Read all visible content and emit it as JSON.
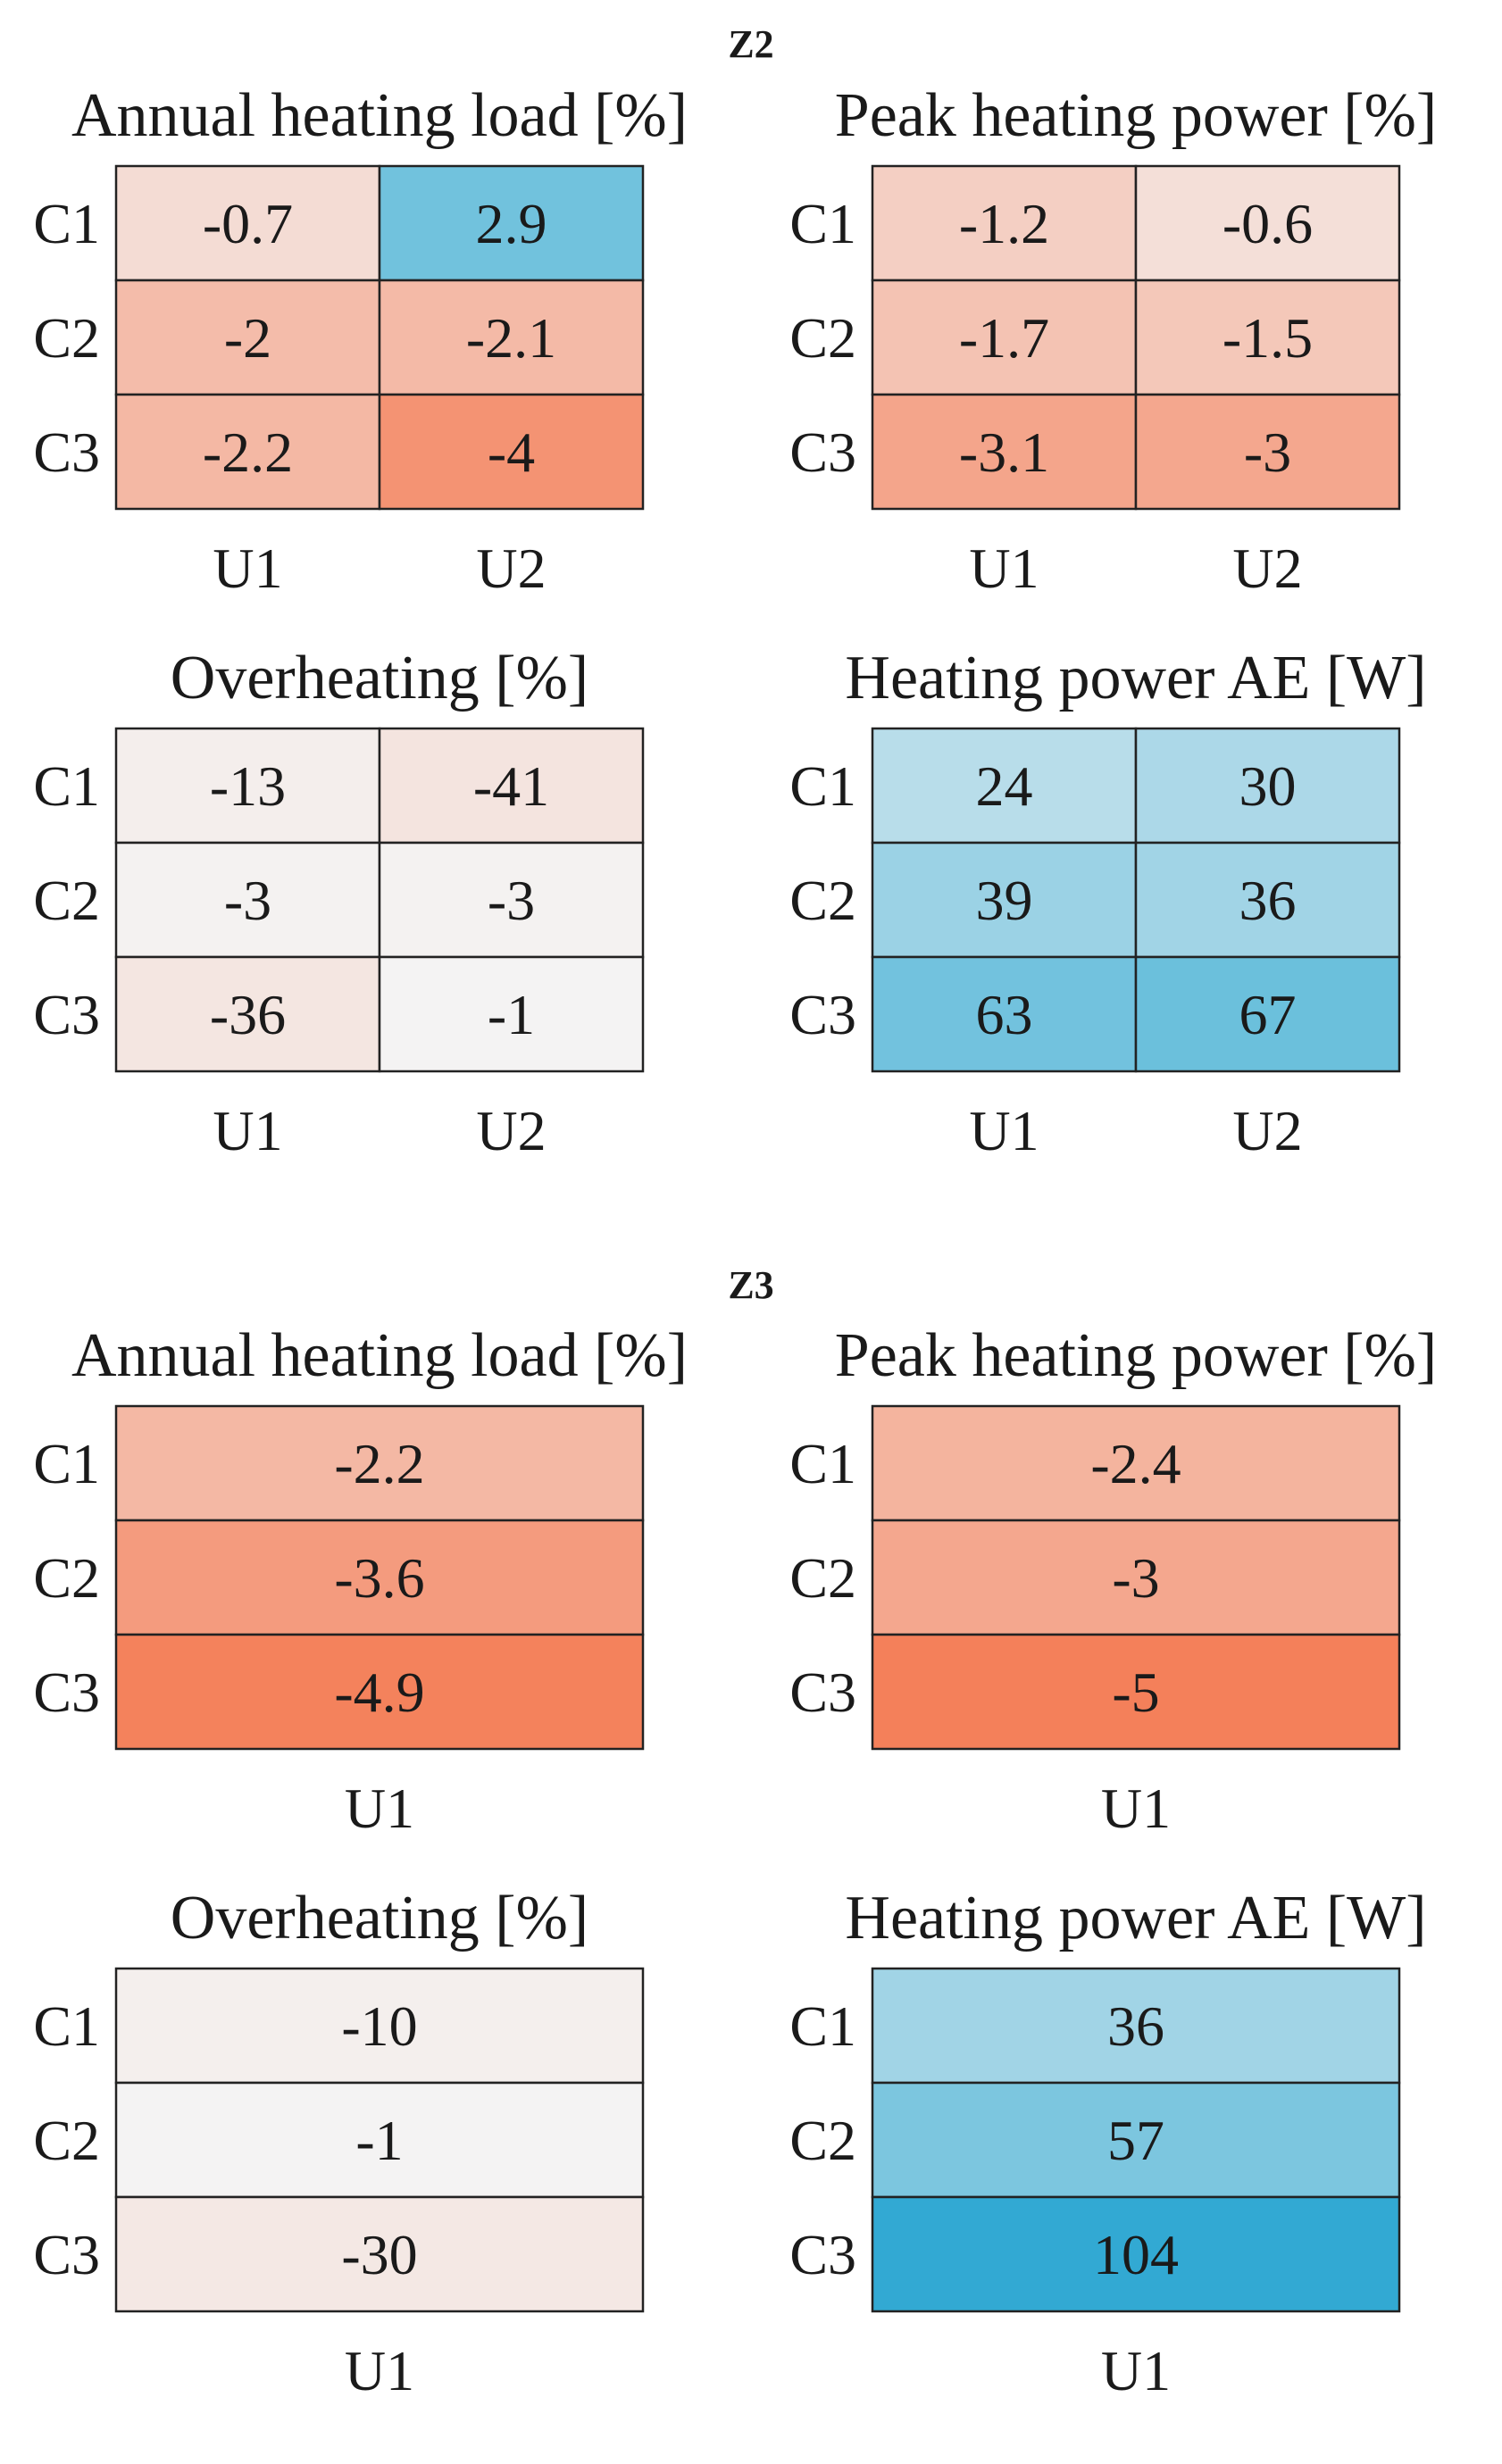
{
  "colors": {
    "negative_strong": "#f4805a",
    "positive_strong": "#29a6d1",
    "neutral": "#f4f4f4",
    "grid_stroke": "#222222"
  },
  "chart_data": [
    {
      "type": "heatmap",
      "section": "Z2",
      "title": "Annual heating load [%]",
      "rows": [
        "C1",
        "C2",
        "C3"
      ],
      "columns": [
        "U1",
        "U2"
      ],
      "values": [
        [
          -0.7,
          2.9
        ],
        [
          -2,
          -2.1
        ],
        [
          -2.2,
          -4
        ]
      ],
      "labels": [
        [
          "-0.7",
          "2.9"
        ],
        [
          "-2",
          "-2.1"
        ],
        [
          "-2.2",
          "-4"
        ]
      ],
      "color_scale": {
        "metric": "percent",
        "min": -5,
        "max": 5
      }
    },
    {
      "type": "heatmap",
      "section": "Z2",
      "title": "Peak heating power [%]",
      "rows": [
        "C1",
        "C2",
        "C3"
      ],
      "columns": [
        "U1",
        "U2"
      ],
      "values": [
        [
          -1.2,
          -0.6
        ],
        [
          -1.7,
          -1.5
        ],
        [
          -3.1,
          -3
        ]
      ],
      "labels": [
        [
          "-1.2",
          "-0.6"
        ],
        [
          "-1.7",
          "-1.5"
        ],
        [
          "-3.1",
          "-3"
        ]
      ],
      "color_scale": {
        "metric": "percent",
        "min": -5,
        "max": 5
      }
    },
    {
      "type": "heatmap",
      "section": "Z2",
      "title": "Overheating [%]",
      "rows": [
        "C1",
        "C2",
        "C3"
      ],
      "columns": [
        "U1",
        "U2"
      ],
      "values": [
        [
          -13,
          -41
        ],
        [
          -3,
          -3
        ],
        [
          -36,
          -1
        ]
      ],
      "labels": [
        [
          "-13",
          "-41"
        ],
        [
          "-3",
          "-3"
        ],
        [
          "-36",
          "-1"
        ]
      ],
      "color_scale": {
        "metric": "overheating",
        "min": -500,
        "max": 500
      }
    },
    {
      "type": "heatmap",
      "section": "Z2",
      "title": "Heating power AE [W]",
      "rows": [
        "C1",
        "C2",
        "C3"
      ],
      "columns": [
        "U1",
        "U2"
      ],
      "values": [
        [
          24,
          30
        ],
        [
          39,
          36
        ],
        [
          63,
          67
        ]
      ],
      "labels": [
        [
          "24",
          "30"
        ],
        [
          "39",
          "36"
        ],
        [
          "63",
          "67"
        ]
      ],
      "color_scale": {
        "metric": "watts",
        "min": -110,
        "max": 110
      }
    },
    {
      "type": "heatmap",
      "section": "Z3",
      "title": "Annual heating load [%]",
      "rows": [
        "C1",
        "C2",
        "C3"
      ],
      "columns": [
        "U1"
      ],
      "values": [
        [
          -2.2
        ],
        [
          -3.6
        ],
        [
          -4.9
        ]
      ],
      "labels": [
        [
          "-2.2"
        ],
        [
          "-3.6"
        ],
        [
          "-4.9"
        ]
      ],
      "color_scale": {
        "metric": "percent",
        "min": -5,
        "max": 5
      }
    },
    {
      "type": "heatmap",
      "section": "Z3",
      "title": "Peak heating power [%]",
      "rows": [
        "C1",
        "C2",
        "C3"
      ],
      "columns": [
        "U1"
      ],
      "values": [
        [
          -2.4
        ],
        [
          -3
        ],
        [
          -5
        ]
      ],
      "labels": [
        [
          "-2.4"
        ],
        [
          "-3"
        ],
        [
          "-5"
        ]
      ],
      "color_scale": {
        "metric": "percent",
        "min": -5,
        "max": 5
      }
    },
    {
      "type": "heatmap",
      "section": "Z3",
      "title": "Overheating [%]",
      "rows": [
        "C1",
        "C2",
        "C3"
      ],
      "columns": [
        "U1"
      ],
      "values": [
        [
          -10
        ],
        [
          -1
        ],
        [
          -30
        ]
      ],
      "labels": [
        [
          "-10"
        ],
        [
          "-1"
        ],
        [
          "-30"
        ]
      ],
      "color_scale": {
        "metric": "overheating",
        "min": -500,
        "max": 500
      }
    },
    {
      "type": "heatmap",
      "section": "Z3",
      "title": "Heating power AE [W]",
      "rows": [
        "C1",
        "C2",
        "C3"
      ],
      "columns": [
        "U1"
      ],
      "values": [
        [
          36
        ],
        [
          57
        ],
        [
          104
        ]
      ],
      "labels": [
        [
          "36"
        ],
        [
          "57"
        ],
        [
          "104"
        ]
      ],
      "color_scale": {
        "metric": "watts",
        "min": -110,
        "max": 110
      }
    }
  ]
}
